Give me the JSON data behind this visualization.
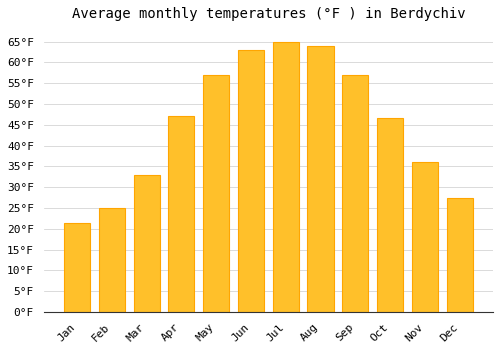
{
  "title": "Average monthly temperatures (°F ) in Berdychiv",
  "months": [
    "Jan",
    "Feb",
    "Mar",
    "Apr",
    "May",
    "Jun",
    "Jul",
    "Aug",
    "Sep",
    "Oct",
    "Nov",
    "Dec"
  ],
  "values": [
    21.5,
    25.0,
    33.0,
    47.0,
    57.0,
    63.0,
    65.0,
    64.0,
    57.0,
    46.5,
    36.0,
    27.5
  ],
  "bar_color": "#FFC02A",
  "bar_edge_color": "#FFA500",
  "background_color": "#FFFFFF",
  "grid_color": "#CCCCCC",
  "ylim": [
    0,
    68
  ],
  "yticks": [
    0,
    5,
    10,
    15,
    20,
    25,
    30,
    35,
    40,
    45,
    50,
    55,
    60,
    65
  ],
  "ylabel_suffix": "°F",
  "title_fontsize": 10,
  "tick_fontsize": 8,
  "font_family": "monospace"
}
